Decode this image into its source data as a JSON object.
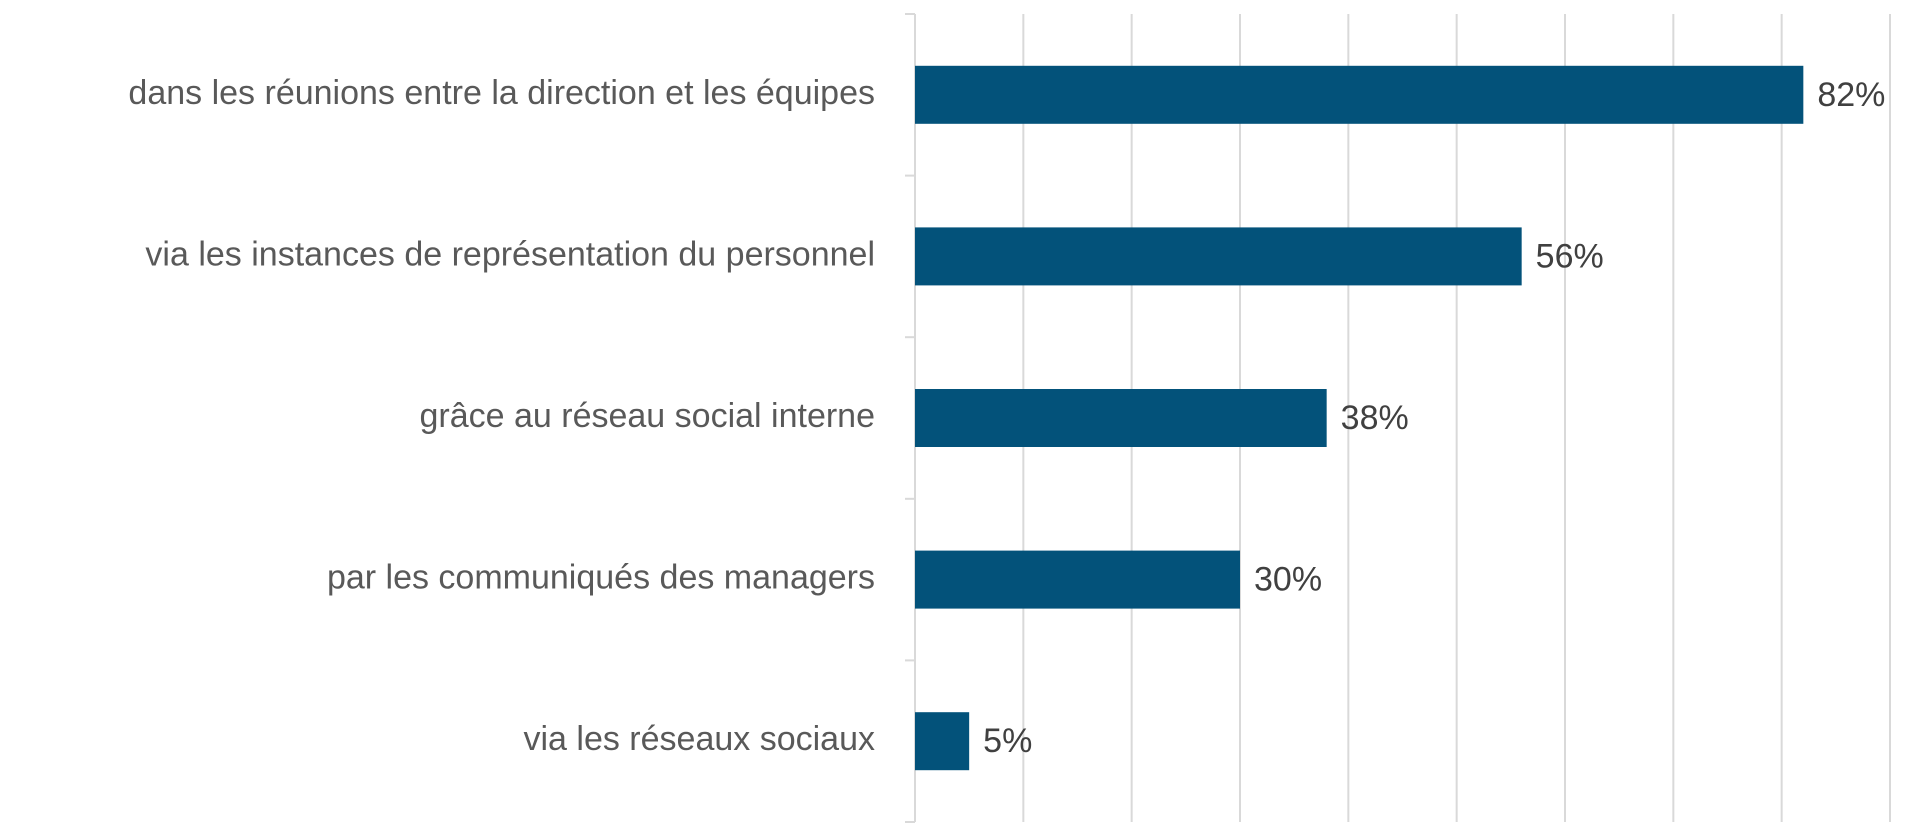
{
  "chart_data": {
    "type": "barh",
    "categories": [
      "dans les réunions entre la direction et les équipes",
      "via les instances de représentation du personnel",
      "grâce au réseau social interne",
      "par les communiqués des managers",
      "via les réseaux sociaux"
    ],
    "values": [
      82,
      56,
      38,
      30,
      5
    ],
    "value_labels": [
      "82%",
      "56%",
      "38%",
      "30%",
      "5%"
    ],
    "color": "#03527a",
    "xlim": [
      0,
      90
    ],
    "xticks": [
      0,
      10,
      20,
      30,
      40,
      50,
      60,
      70,
      80,
      90
    ],
    "grid": true
  }
}
